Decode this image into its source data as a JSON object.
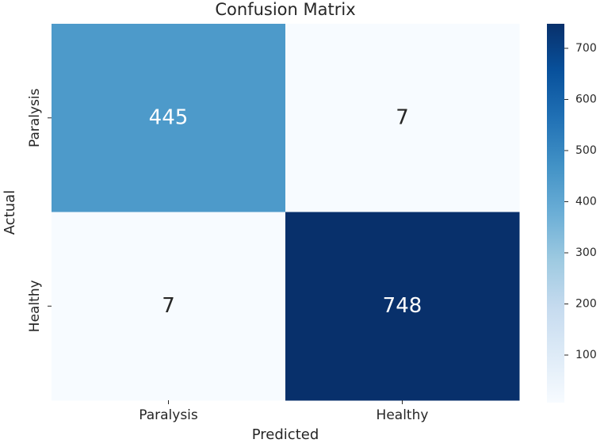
{
  "chart_data": {
    "type": "heatmap",
    "title": "Confusion Matrix",
    "x_label": "Predicted",
    "y_label": "Actual",
    "x_categories": [
      "Paralysis",
      "Healthy"
    ],
    "y_categories": [
      "Paralysis",
      "Healthy"
    ],
    "values": [
      [
        445,
        7
      ],
      [
        7,
        748
      ]
    ],
    "cmap": "Blues",
    "clim": [
      7,
      748
    ],
    "colorbar_ticks": [
      100,
      200,
      300,
      400,
      500,
      600,
      700
    ]
  }
}
